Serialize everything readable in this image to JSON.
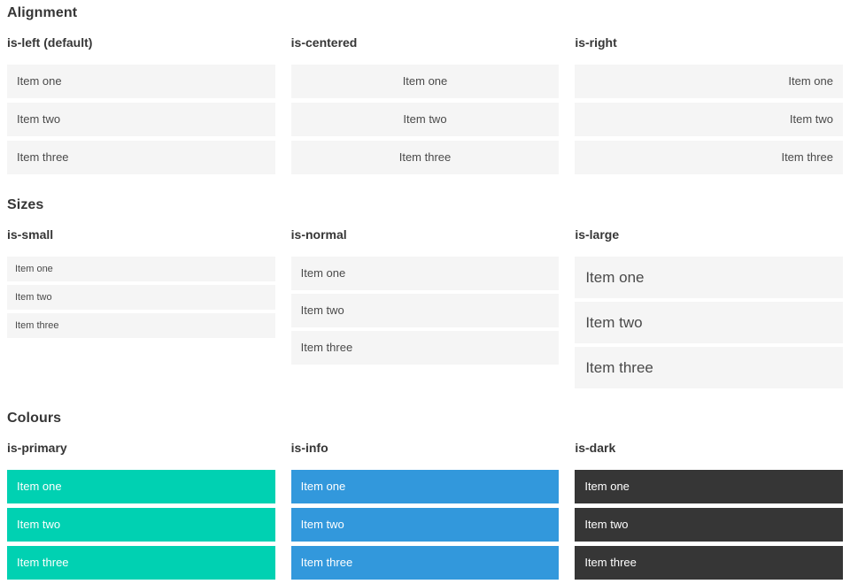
{
  "colors": {
    "primary": "#00d1b2",
    "info": "#3298dc",
    "dark": "#363636",
    "item_bg": "#f5f5f5",
    "item_text": "#4a4a4a",
    "heading_text": "#363636"
  },
  "sections": [
    {
      "title": "Alignment",
      "groups": [
        {
          "label": "is-left (default)",
          "variant": "align-left",
          "items": [
            "Item one",
            "Item two",
            "Item three"
          ]
        },
        {
          "label": "is-centered",
          "variant": "align-center",
          "items": [
            "Item one",
            "Item two",
            "Item three"
          ]
        },
        {
          "label": "is-right",
          "variant": "align-right",
          "items": [
            "Item one",
            "Item two",
            "Item three"
          ]
        }
      ]
    },
    {
      "title": "Sizes",
      "groups": [
        {
          "label": "is-small",
          "variant": "size-small",
          "items": [
            "Item one",
            "Item two",
            "Item three"
          ]
        },
        {
          "label": "is-normal",
          "variant": "size-normal",
          "items": [
            "Item one",
            "Item two",
            "Item three"
          ]
        },
        {
          "label": "is-large",
          "variant": "size-large",
          "items": [
            "Item one",
            "Item two",
            "Item three"
          ]
        }
      ]
    },
    {
      "title": "Colours",
      "groups": [
        {
          "label": "is-primary",
          "variant": "color-primary",
          "items": [
            "Item one",
            "Item two",
            "Item three"
          ]
        },
        {
          "label": "is-info",
          "variant": "color-info",
          "items": [
            "Item one",
            "Item two",
            "Item three"
          ]
        },
        {
          "label": "is-dark",
          "variant": "color-dark",
          "items": [
            "Item one",
            "Item two",
            "Item three"
          ]
        }
      ]
    }
  ]
}
